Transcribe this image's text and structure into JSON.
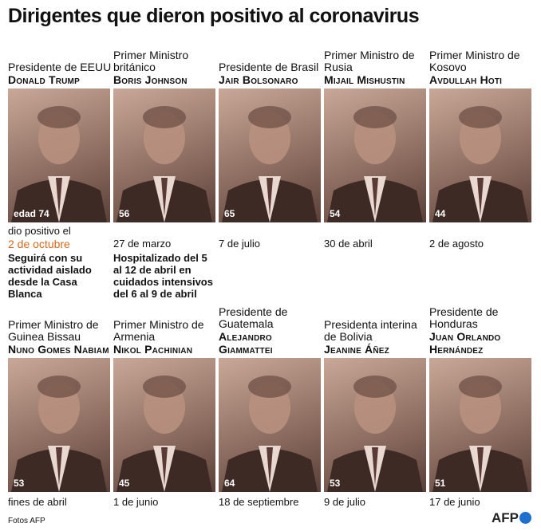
{
  "title": "Dirigentes que dieron positivo al coronavirus",
  "row1": [
    {
      "role": "Presidente de EEUU",
      "name": "Donald Trump",
      "age": "edad 74",
      "date_intro": "dio positivo el",
      "date": "2 de octubre",
      "note": "Seguirá con su actividad aislado desde la Casa Blanca"
    },
    {
      "role": "Primer Ministro británico",
      "name": "Boris Johnson",
      "age": "56",
      "date": "27 de marzo",
      "note": "Hospitalizado del 5 al 12 de abril en cuidados intensivos del 6 al 9 de abril"
    },
    {
      "role": "Presidente de Brasil",
      "name": "Jair Bolsonaro",
      "age": "65",
      "date": "7 de julio"
    },
    {
      "role": "Primer Ministro de Rusia",
      "name": "Mijail Mishustin",
      "age": "54",
      "date": "30 de abril"
    },
    {
      "role": "Primer Ministro de Kosovo",
      "name": "Avdullah Hoti",
      "age": "44",
      "date": "2 de agosto"
    }
  ],
  "row2": [
    {
      "role": "Primer Ministro de Guinea Bissau",
      "name": "Nuno Gomes Nabiam",
      "age": "53",
      "date": "fines de abril"
    },
    {
      "role": "Primer Ministro de Armenia",
      "name": "Nikol Pachinian",
      "age": "45",
      "date": "1 de junio"
    },
    {
      "role": "Presidente de Guatemala",
      "name": "Alejandro Giammattei",
      "age": "64",
      "date": "18 de septiembre"
    },
    {
      "role": "Presidenta interina de Bolivia",
      "name": "Jeanine Áñez",
      "age": "53",
      "date": "9 de julio"
    },
    {
      "role": "Presidente de Honduras",
      "name": "Juan Orlando Hernández",
      "age": "51",
      "date": "17 de junio"
    }
  ],
  "footer": {
    "credit": "Fotos AFP",
    "logo": "AFP"
  },
  "colors": {
    "accent": "#d2691e",
    "photo_tint": "#8a6a5e",
    "logo_dot": "#1f6fd1"
  }
}
